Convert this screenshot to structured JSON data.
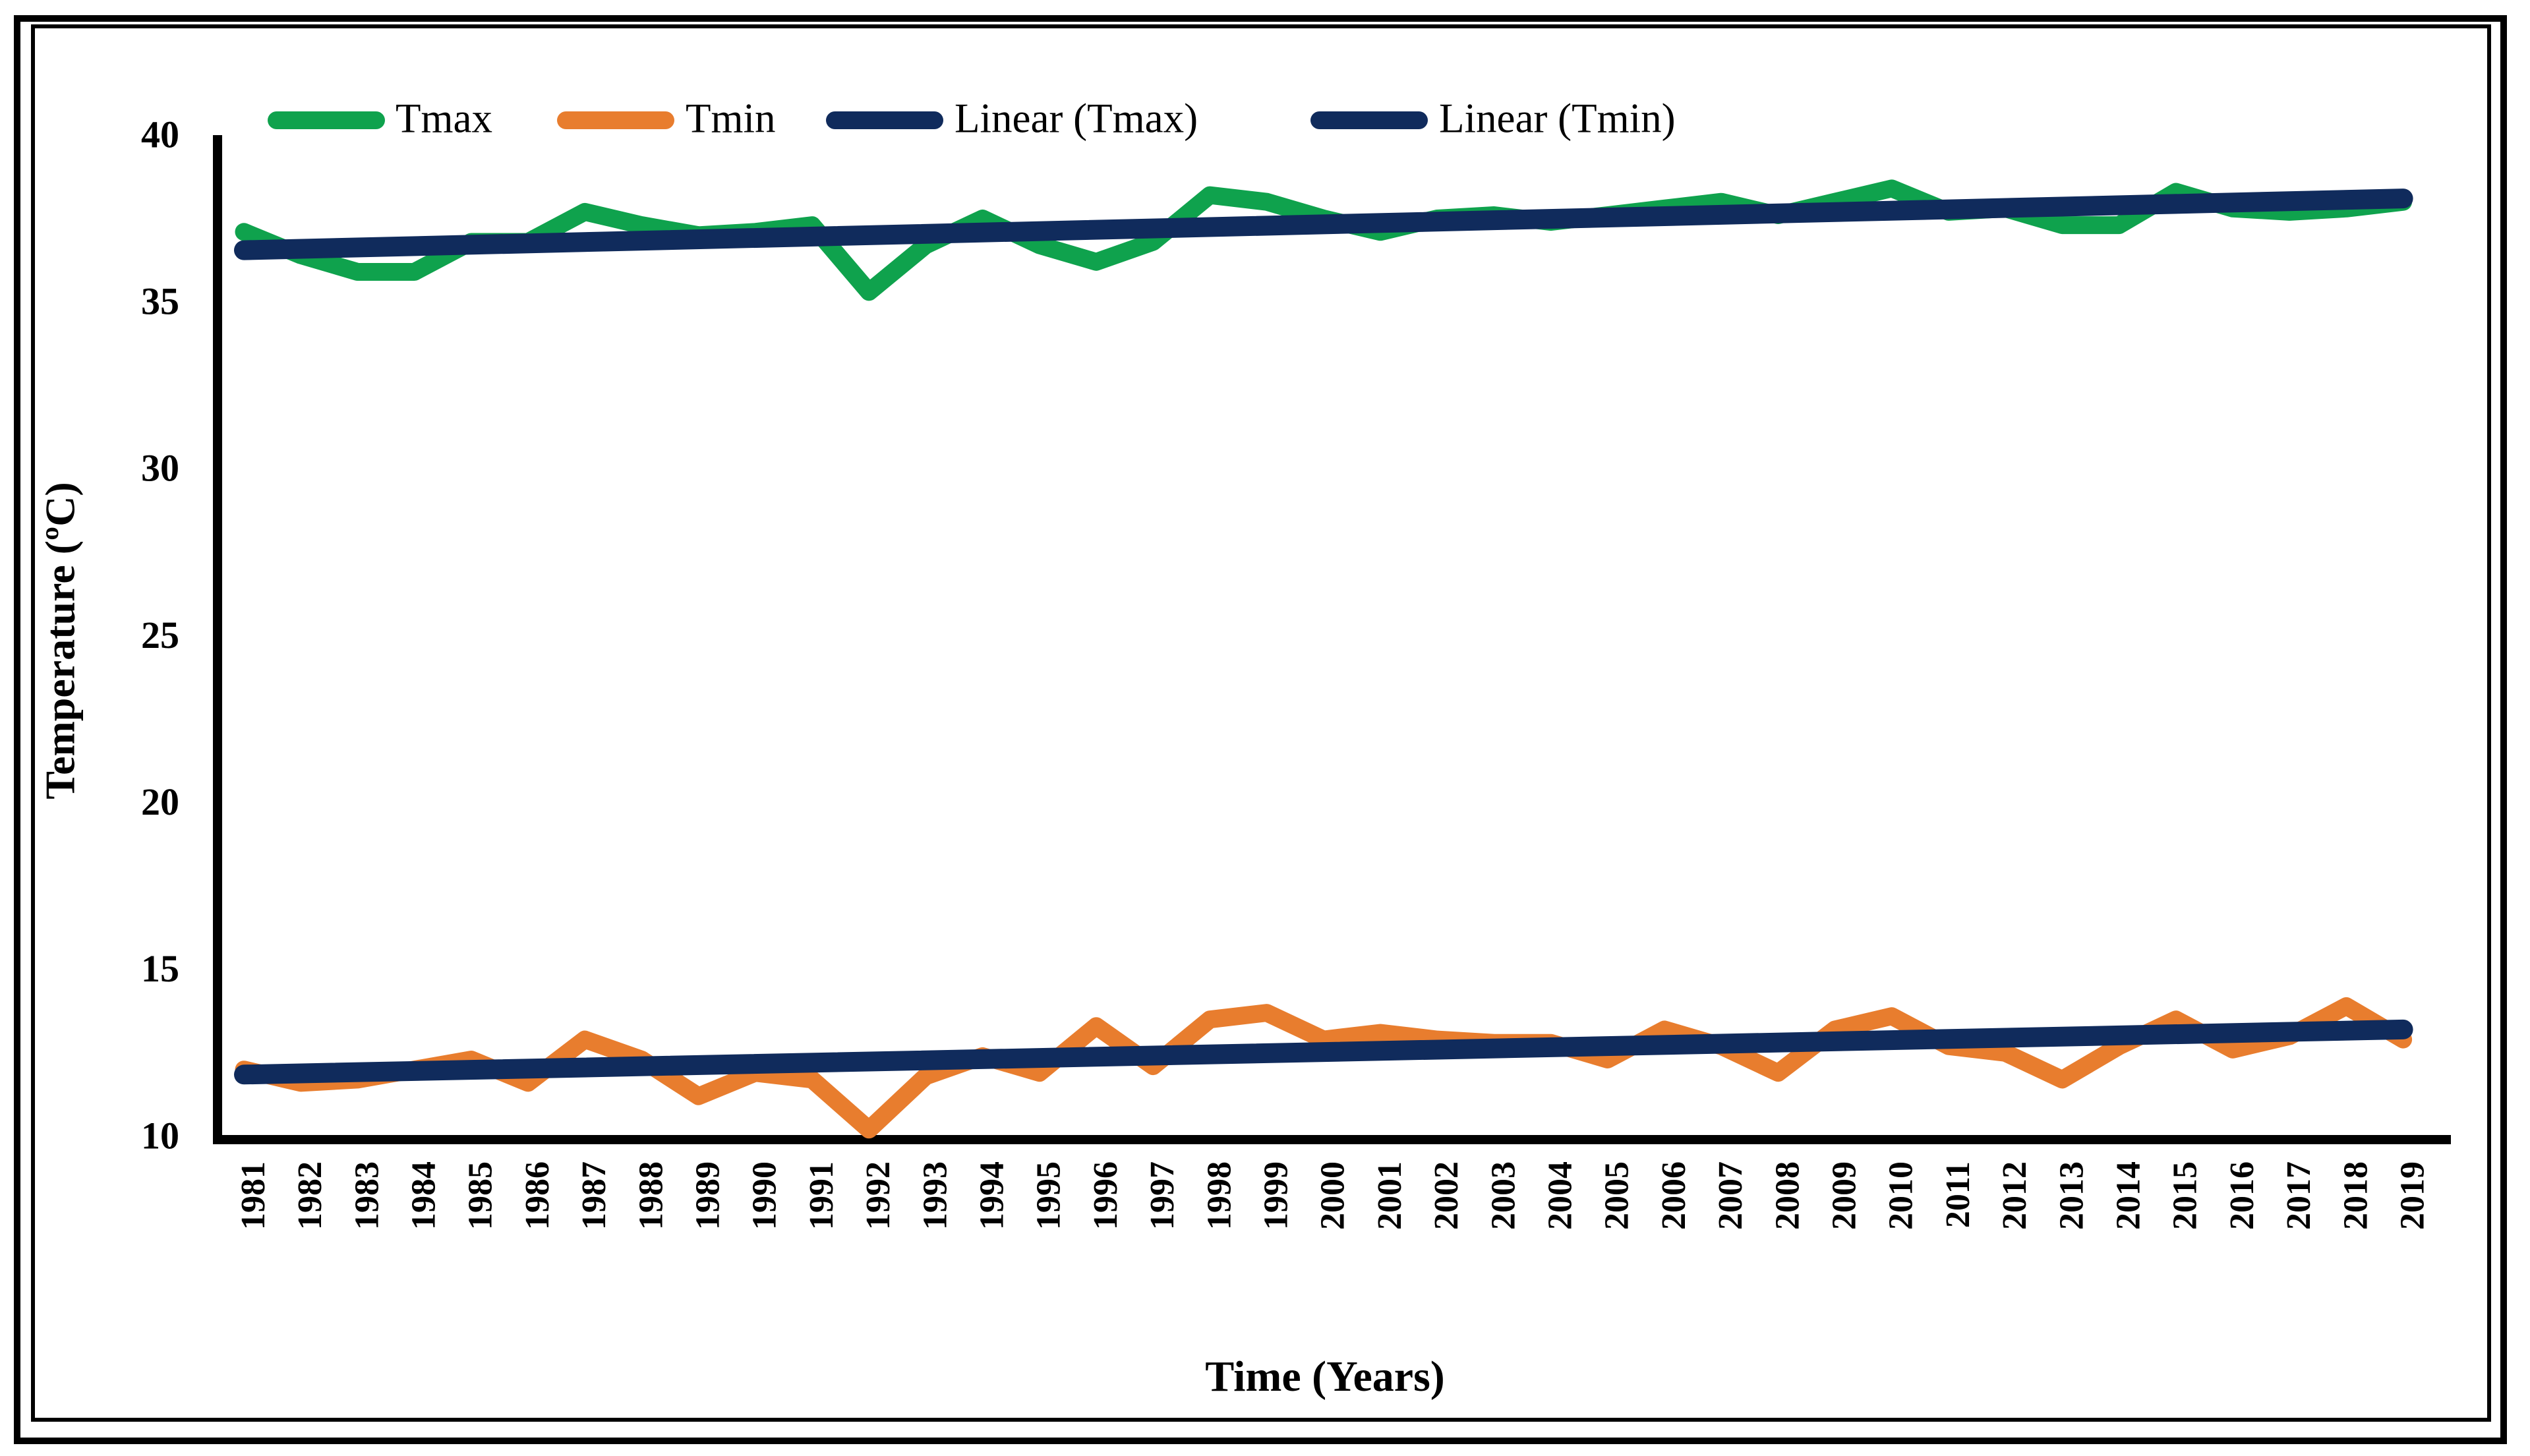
{
  "figure": {
    "x_axis_title": "Time (Years)",
    "y_axis_title": "Temperature (ºC)"
  },
  "legend": {
    "items": [
      {
        "label": "Tmax",
        "color": "#0FA24D"
      },
      {
        "label": "Tmin",
        "color": "#E87D2E"
      },
      {
        "label": "Linear (Tmax)",
        "color": "#102B5C"
      },
      {
        "label": "Linear (Tmin)",
        "color": "#102B5C"
      }
    ]
  },
  "chart_data": {
    "type": "line",
    "title": "",
    "xlabel": "Time (Years)",
    "ylabel": "Temperature (ºC)",
    "ylim": [
      10,
      40
    ],
    "yticks": [
      10,
      15,
      20,
      25,
      30,
      35,
      40
    ],
    "grid": false,
    "legend_position": "top",
    "categories": [
      1981,
      1982,
      1983,
      1984,
      1985,
      1986,
      1987,
      1988,
      1989,
      1990,
      1991,
      1992,
      1993,
      1994,
      1995,
      1996,
      1997,
      1998,
      1999,
      2000,
      2001,
      2002,
      2003,
      2004,
      2005,
      2006,
      2007,
      2008,
      2009,
      2010,
      2011,
      2012,
      2013,
      2014,
      2015,
      2016,
      2017,
      2018,
      2019
    ],
    "series": [
      {
        "name": "Tmax",
        "color": "#0FA24D",
        "values": [
          37.2,
          36.5,
          36.0,
          36.0,
          36.9,
          36.9,
          37.8,
          37.4,
          37.1,
          37.2,
          37.4,
          35.4,
          36.8,
          37.6,
          36.8,
          36.3,
          36.9,
          38.3,
          38.1,
          37.6,
          37.2,
          37.6,
          37.7,
          37.5,
          37.7,
          37.9,
          38.1,
          37.7,
          38.1,
          38.5,
          37.8,
          37.9,
          37.4,
          37.4,
          38.4,
          37.9,
          37.8,
          37.9,
          38.1
        ]
      },
      {
        "name": "Tmin",
        "color": "#E87D2E",
        "values": [
          12.1,
          11.7,
          11.8,
          12.1,
          12.4,
          11.7,
          13.0,
          12.4,
          11.3,
          12.0,
          11.8,
          10.3,
          11.9,
          12.5,
          12.0,
          13.4,
          12.2,
          13.6,
          13.8,
          13.0,
          13.2,
          13.0,
          12.9,
          12.9,
          12.4,
          13.3,
          12.8,
          12.0,
          13.3,
          13.7,
          12.8,
          12.6,
          11.8,
          12.8,
          13.6,
          12.7,
          13.1,
          14.0,
          13.0
        ]
      }
    ],
    "trendlines": [
      {
        "name": "Linear (Tmax)",
        "color": "#102B5C",
        "start_value": 36.65,
        "end_value": 38.2
      },
      {
        "name": "Linear (Tmin)",
        "color": "#102B5C",
        "start_value": 11.95,
        "end_value": 13.3
      }
    ]
  },
  "colors": {
    "tmax": "#0FA24D",
    "tmin": "#E87D2E",
    "trend": "#102B5C",
    "axis": "#000000",
    "background": "#ffffff"
  }
}
